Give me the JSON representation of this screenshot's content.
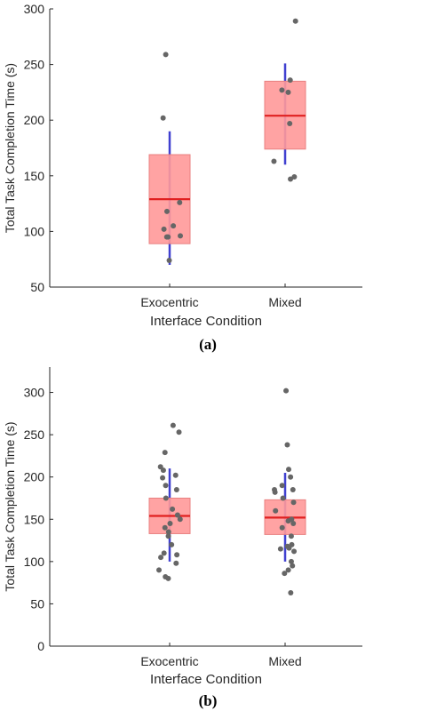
{
  "chart_data": [
    {
      "type": "box",
      "caption": "(a)",
      "xlabel": "Interface Condition",
      "ylabel": "Total Task Completion Time (s)",
      "ylim": [
        50,
        300
      ],
      "yticks": [
        50,
        100,
        150,
        200,
        250,
        300
      ],
      "categories": [
        "Exocentric",
        "Mixed"
      ],
      "box_color": "#ff9999",
      "median_color": "#e02020",
      "whisker_color": "#4040d0",
      "point_color": "#666666",
      "boxes": [
        {
          "category": "Exocentric",
          "q1": 89,
          "median": 129,
          "q3": 169,
          "whisker_low": 70,
          "whisker_high": 190
        },
        {
          "category": "Mixed",
          "q1": 174,
          "median": 204,
          "q3": 235,
          "whisker_low": 160,
          "whisker_high": 251
        }
      ],
      "points": [
        {
          "category": "Exocentric",
          "values": [
            259,
            202,
            126,
            118,
            105,
            102,
            96,
            95,
            95,
            74
          ]
        },
        {
          "category": "Mixed",
          "values": [
            289,
            236,
            227,
            225,
            197,
            163,
            149,
            147
          ]
        }
      ]
    },
    {
      "type": "box",
      "caption": "(b)",
      "xlabel": "Interface Condition",
      "ylabel": "Total Task Completion Time (s)",
      "ylim": [
        0,
        330
      ],
      "yticks": [
        0,
        50,
        100,
        150,
        200,
        250,
        300
      ],
      "categories": [
        "Exocentric",
        "Mixed"
      ],
      "box_color": "#ff9999",
      "median_color": "#e02020",
      "whisker_color": "#4040d0",
      "point_color": "#666666",
      "boxes": [
        {
          "category": "Exocentric",
          "q1": 133,
          "median": 154,
          "q3": 175,
          "whisker_low": 100,
          "whisker_high": 210
        },
        {
          "category": "Mixed",
          "q1": 132,
          "median": 152,
          "q3": 173,
          "whisker_low": 100,
          "whisker_high": 205
        }
      ],
      "points": [
        {
          "category": "Exocentric",
          "values": [
            261,
            253,
            229,
            212,
            208,
            202,
            199,
            190,
            185,
            175,
            162,
            155,
            150,
            145,
            140,
            135,
            130,
            120,
            110,
            108,
            105,
            98,
            90,
            82,
            80
          ]
        },
        {
          "category": "Mixed",
          "values": [
            302,
            238,
            209,
            200,
            190,
            185,
            185,
            182,
            175,
            170,
            160,
            150,
            148,
            145,
            140,
            130,
            120,
            118,
            116,
            115,
            112,
            100,
            95,
            90,
            86,
            63
          ]
        }
      ]
    }
  ]
}
